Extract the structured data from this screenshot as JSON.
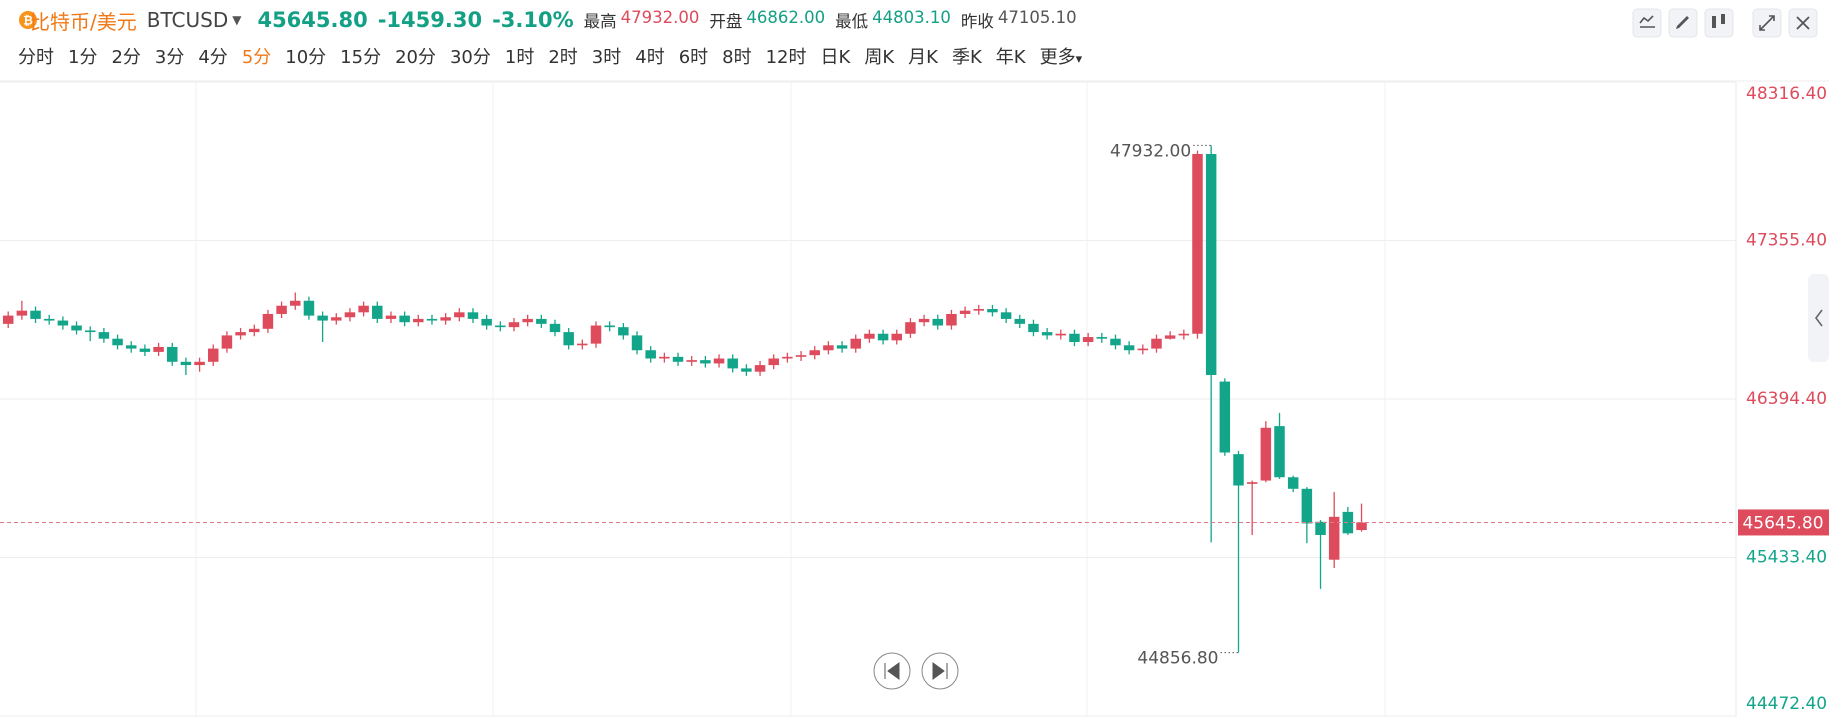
{
  "header": {
    "name": "比特币/美元",
    "symbol": "BTCUSD",
    "price": "45645.80",
    "change": "-1459.30",
    "change_pct": "-3.10%",
    "stats": [
      {
        "label": "最高",
        "value": "47932.00",
        "color": "#dd4b5c"
      },
      {
        "label": "开盘",
        "value": "46862.00",
        "color": "#14a085"
      },
      {
        "label": "最低",
        "value": "44803.10",
        "color": "#14a085"
      },
      {
        "label": "昨收",
        "value": "47105.10",
        "color": "#555"
      }
    ]
  },
  "timeframes": {
    "items": [
      "分时",
      "1分",
      "2分",
      "3分",
      "4分",
      "5分",
      "10分",
      "15分",
      "20分",
      "30分",
      "1时",
      "2时",
      "3时",
      "4时",
      "6时",
      "8时",
      "12时",
      "日K",
      "周K",
      "月K",
      "季K",
      "年K",
      "更多"
    ],
    "active": 5
  },
  "chart_data": {
    "type": "candlestick",
    "up_color": "#dd4b5c",
    "down_color": "#13a58a",
    "ylim": [
      44472.4,
      48316.4
    ],
    "yticks": [
      {
        "value": 44472.4,
        "label": "44472.40"
      },
      {
        "value": 45433.4,
        "label": "45433.40"
      },
      {
        "value": 46394.4,
        "label": "46394.40"
      },
      {
        "value": 47355.4,
        "label": "47355.40"
      },
      {
        "value": 48316.4,
        "label": "48316.40"
      }
    ],
    "grid": true,
    "current": {
      "value": 45645.8,
      "label": "45645.80"
    },
    "annotations": [
      {
        "value": 47932,
        "label": "47932.00"
      },
      {
        "value": 44856.8,
        "label": "44856.80"
      }
    ],
    "open": [
      46850,
      46900,
      46930,
      46880,
      46870,
      46840,
      46810,
      46800,
      46760,
      46720,
      46700,
      46680,
      46710,
      46620,
      46600,
      46620,
      46700,
      46780,
      46800,
      46820,
      46910,
      46960,
      46990,
      46900,
      46870,
      46890,
      46920,
      46960,
      46880,
      46900,
      46860,
      46880,
      46870,
      46890,
      46920,
      46880,
      46840,
      46830,
      46860,
      46880,
      46850,
      46800,
      46720,
      46730,
      46840,
      46830,
      46780,
      46690,
      46640,
      46650,
      46620,
      46630,
      46610,
      46640,
      46580,
      46560,
      46600,
      46640,
      46650,
      46660,
      46690,
      46720,
      46700,
      46760,
      46790,
      46750,
      46790,
      46860,
      46880,
      46840,
      46910,
      46930,
      46940,
      46920,
      46880,
      46850,
      46800,
      46780,
      46790,
      46740,
      46770,
      46760,
      46720,
      46690,
      46700,
      46760,
      46780,
      46790,
      47880,
      46500,
      46060,
      45880,
      45900,
      46230,
      45920,
      45850,
      45650,
      45420,
      45710,
      45600
    ],
    "high": [
      46925,
      46990,
      46955,
      46905,
      46895,
      46865,
      46835,
      46825,
      46785,
      46745,
      46725,
      46735,
      46735,
      46645,
      46645,
      46725,
      46805,
      46825,
      46845,
      46935,
      46985,
      47040,
      47015,
      46925,
      46915,
      46945,
      46985,
      46985,
      46925,
      46925,
      46905,
      46905,
      46915,
      46945,
      46945,
      46905,
      46865,
      46885,
      46905,
      46905,
      46875,
      46825,
      46755,
      46865,
      46865,
      46855,
      46805,
      46715,
      46675,
      46675,
      46655,
      46655,
      46665,
      46665,
      46605,
      46625,
      46665,
      46675,
      46685,
      46715,
      46745,
      46745,
      46785,
      46815,
      46815,
      46815,
      46885,
      46905,
      46905,
      46935,
      46955,
      46965,
      46965,
      46945,
      46905,
      46875,
      46825,
      46815,
      46815,
      46795,
      46795,
      46785,
      46745,
      46725,
      46785,
      46805,
      46815,
      47900,
      47932,
      46520,
      46080,
      45900,
      46260,
      46310,
      45930,
      45860,
      45660,
      45830,
      45740,
      45760
    ],
    "low": [
      46825,
      46875,
      46855,
      46845,
      46815,
      46785,
      46745,
      46735,
      46695,
      46675,
      46655,
      46655,
      46595,
      46540,
      46560,
      46595,
      46675,
      46755,
      46775,
      46795,
      46885,
      46935,
      46875,
      46740,
      46845,
      46865,
      46895,
      46855,
      46855,
      46835,
      46835,
      46845,
      46845,
      46865,
      46855,
      46815,
      46805,
      46805,
      46835,
      46825,
      46775,
      46695,
      46695,
      46705,
      46805,
      46755,
      46665,
      46615,
      46615,
      46595,
      46595,
      46585,
      46585,
      46555,
      46535,
      46535,
      46575,
      46615,
      46625,
      46635,
      46665,
      46675,
      46675,
      46735,
      46725,
      46725,
      46765,
      46835,
      46815,
      46815,
      46885,
      46905,
      46895,
      46855,
      46825,
      46775,
      46755,
      46755,
      46715,
      46715,
      46735,
      46695,
      46665,
      46665,
      46675,
      46755,
      46755,
      46760,
      45525,
      46050,
      44856.8,
      45570,
      45890,
      45910,
      45830,
      45520,
      45243,
      45370,
      45570,
      45590
    ],
    "close": [
      46900,
      46930,
      46880,
      46870,
      46840,
      46810,
      46800,
      46760,
      46720,
      46700,
      46680,
      46710,
      46620,
      46600,
      46620,
      46700,
      46780,
      46800,
      46820,
      46910,
      46960,
      46990,
      46900,
      46870,
      46890,
      46920,
      46960,
      46880,
      46900,
      46860,
      46880,
      46870,
      46890,
      46920,
      46880,
      46840,
      46830,
      46860,
      46880,
      46850,
      46800,
      46720,
      46730,
      46840,
      46830,
      46780,
      46690,
      46640,
      46650,
      46620,
      46630,
      46610,
      46640,
      46580,
      46560,
      46600,
      46640,
      46650,
      46660,
      46690,
      46720,
      46700,
      46760,
      46790,
      46750,
      46790,
      46860,
      46880,
      46840,
      46910,
      46930,
      46940,
      46920,
      46880,
      46850,
      46800,
      46780,
      46790,
      46740,
      46770,
      46760,
      46720,
      46690,
      46700,
      46760,
      46780,
      46790,
      47880,
      46540,
      46070,
      45870,
      45890,
      46220,
      45920,
      45850,
      45640,
      45570,
      45680,
      45580,
      45645.8
    ]
  }
}
